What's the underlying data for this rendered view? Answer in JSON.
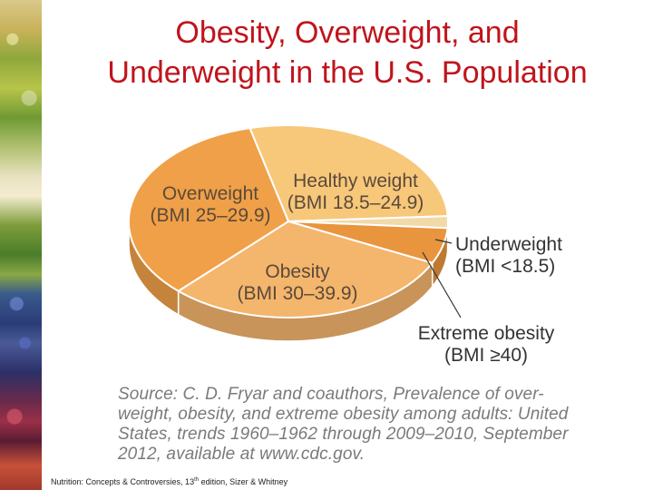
{
  "title": {
    "line1": "Obesity, Overweight, and",
    "line2": "Underweight in the U.S. Population"
  },
  "colors": {
    "title": "#c0141c",
    "healthy": "#f7c77a",
    "overweight": "#f0a048",
    "obesity": "#f4b56c",
    "underweight": "#f2d9a8",
    "extreme": "#e8953e"
  },
  "chart_data": {
    "type": "pie",
    "style": "3d",
    "slices": [
      {
        "name": "Healthy weight",
        "note": "(BMI 18.5–24.9)",
        "value": 28
      },
      {
        "name": "Underweight",
        "note": "(BMI <18.5)",
        "value": 2
      },
      {
        "name": "Extreme obesity",
        "note": "(BMI ≥40)",
        "value": 6
      },
      {
        "name": "Obesity",
        "note": "(BMI 30–39.9)",
        "value": 30
      },
      {
        "name": "Overweight",
        "note": "(BMI 25–29.9)",
        "value": 34
      }
    ]
  },
  "source": {
    "lines": [
      "Source:  C. D. Fryar and coauthors, Prevalence of over-",
      "weight, obesity, and extreme obesity among adults: United",
      "States, trends 1960–1962 through 2009–2010, September",
      "2012, available at www.cdc.gov."
    ]
  },
  "footer": {
    "pre": "Nutrition: Concepts & Controversies, 13",
    "sup": "th",
    "post": " edition, Sizer & Whitney"
  }
}
